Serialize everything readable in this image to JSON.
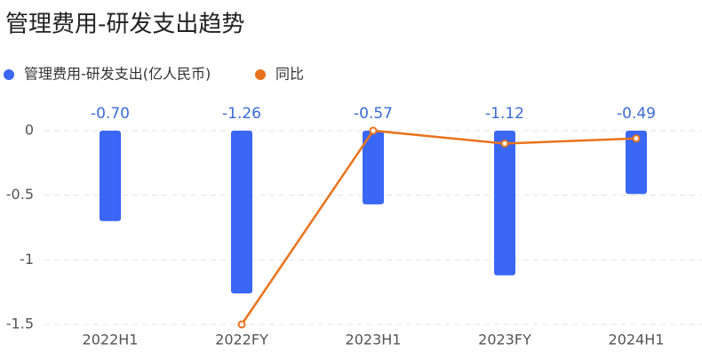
{
  "chart_data": {
    "type": "bar",
    "title": "管理费用-研发支出趋势",
    "categories": [
      "2022H1",
      "2022FY",
      "2023H1",
      "2023FY",
      "2024H1"
    ],
    "series": [
      {
        "name": "管理费用-研发支出(亿人民币)",
        "type": "bar",
        "color": "#3a67f5",
        "values": [
          -0.7,
          -1.26,
          -0.57,
          -1.12,
          -0.49
        ],
        "value_labels": [
          "-0.70",
          "-1.26",
          "-0.57",
          "-1.12",
          "-0.49"
        ]
      },
      {
        "name": "同比",
        "type": "line",
        "color": "#e8731c",
        "values": [
          null,
          -1.5,
          0.0,
          -0.1,
          -0.06
        ]
      }
    ],
    "ylim": [
      -1.5,
      0
    ],
    "yticks": [
      0,
      -0.5,
      -1,
      -1.5
    ],
    "grid": true
  }
}
